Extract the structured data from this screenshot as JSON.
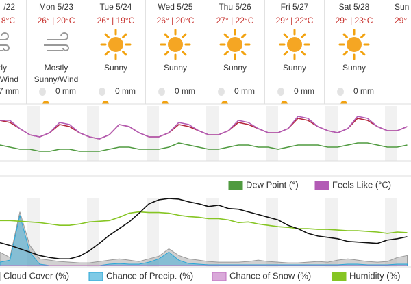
{
  "days": [
    {
      "date": "/22",
      "temps": "8°C",
      "condition": [
        "stly",
        "/Wind"
      ],
      "precip": "7 mm"
    },
    {
      "date": "Mon 5/23",
      "temps": "26° | 20°C",
      "condition": [
        "Mostly",
        "Sunny/Wind"
      ],
      "precip": "0 mm"
    },
    {
      "date": "Tue 5/24",
      "temps": "26° | 19°C",
      "condition": [
        "Sunny"
      ],
      "precip": "0 mm"
    },
    {
      "date": "Wed 5/25",
      "temps": "26° | 20°C",
      "condition": [
        "Sunny"
      ],
      "precip": "0 mm"
    },
    {
      "date": "Thu 5/26",
      "temps": "27° | 22°C",
      "condition": [
        "Sunny"
      ],
      "precip": "0 mm"
    },
    {
      "date": "Fri 5/27",
      "temps": "29° | 22°C",
      "condition": [
        "Sunny"
      ],
      "precip": "0 mm"
    },
    {
      "date": "Sat 5/28",
      "temps": "29° | 23°C",
      "condition": [
        "Sunny"
      ],
      "precip": "0 mm"
    },
    {
      "date": "Sun",
      "temps": "29°",
      "condition": [],
      "precip": ""
    }
  ],
  "chart_data": [
    {
      "type": "line",
      "series": [
        {
          "color": "#b5263a",
          "values": [
            28,
            27,
            24,
            21,
            20,
            22,
            26,
            25,
            22,
            20,
            19,
            21,
            26,
            25,
            22,
            20,
            20,
            22,
            26,
            25,
            23,
            21,
            21,
            23,
            27,
            26,
            24,
            22,
            22,
            24,
            29,
            28,
            25,
            23,
            22,
            24,
            29,
            28,
            25,
            23,
            23,
            25
          ]
        },
        {
          "name": "Feels Like (°C)",
          "color": "#b25bb5",
          "values": [
            28,
            28,
            24,
            21,
            20,
            22,
            27,
            26,
            22,
            20,
            19,
            21,
            26,
            25,
            22,
            20,
            20,
            22,
            27,
            26,
            23,
            21,
            21,
            23,
            28,
            27,
            24,
            22,
            22,
            24,
            30,
            29,
            25,
            23,
            22,
            24,
            30,
            29,
            25,
            23,
            23,
            25
          ]
        },
        {
          "name": "Dew Point (°)",
          "color": "#4f9a3f",
          "values": [
            16,
            15,
            14,
            14,
            13,
            13,
            14,
            14,
            13,
            13,
            13,
            14,
            15,
            15,
            14,
            14,
            14,
            15,
            17,
            16,
            15,
            14,
            14,
            15,
            16,
            16,
            15,
            15,
            14,
            15,
            16,
            16,
            16,
            15,
            15,
            16,
            17,
            17,
            16,
            15,
            15,
            16
          ]
        }
      ]
    },
    {
      "type": "line",
      "series": [
        {
          "name": "Cloud Cover (%)",
          "color": "#9a9a9a",
          "area": true,
          "values": [
            20,
            12,
            80,
            30,
            10,
            8,
            6,
            5,
            4,
            4,
            6,
            8,
            10,
            8,
            6,
            10,
            14,
            25,
            15,
            10,
            8,
            6,
            5,
            5,
            5,
            6,
            8,
            6,
            5,
            4,
            4,
            5,
            6,
            5,
            8,
            10,
            8,
            6,
            5,
            6,
            12,
            15
          ]
        },
        {
          "name": "Chance of Precip. (%)",
          "color": "#2aa6d6",
          "area": true,
          "values": [
            5,
            8,
            75,
            20,
            2,
            0,
            0,
            0,
            0,
            0,
            0,
            2,
            3,
            2,
            2,
            5,
            10,
            20,
            8,
            3,
            2,
            1,
            1,
            1,
            1,
            1,
            1,
            1,
            1,
            1,
            1,
            1,
            1,
            1,
            1,
            2,
            2,
            1,
            1,
            1,
            2,
            2
          ]
        },
        {
          "name": "Chance of Snow (%)",
          "color": "#c070c0",
          "area": true,
          "values": [
            0,
            0,
            0,
            0,
            0,
            0,
            0,
            0,
            0,
            0,
            0,
            0,
            0,
            0,
            0,
            0,
            0,
            0,
            0,
            0,
            0,
            0,
            0,
            0,
            0,
            0,
            0,
            0,
            0,
            0,
            0,
            0,
            0,
            0,
            0,
            0,
            0,
            0,
            0,
            0,
            0,
            0
          ]
        },
        {
          "name": "Humidity (%)",
          "color": "#86c523",
          "values": [
            67,
            67,
            66,
            65,
            64,
            62,
            60,
            60,
            62,
            65,
            66,
            67,
            72,
            78,
            80,
            79,
            79,
            78,
            75,
            73,
            72,
            70,
            70,
            68,
            64,
            65,
            62,
            60,
            58,
            57,
            55,
            55,
            54,
            54,
            53,
            52,
            52,
            51,
            50,
            48,
            50,
            49
          ]
        },
        {
          "color": "#111111",
          "values": [
            34,
            30,
            25,
            20,
            15,
            12,
            10,
            10,
            14,
            22,
            33,
            45,
            55,
            65,
            78,
            92,
            98,
            100,
            99,
            95,
            92,
            88,
            90,
            85,
            84,
            80,
            76,
            72,
            68,
            60,
            55,
            48,
            44,
            42,
            40,
            36,
            35,
            34,
            33,
            38,
            40,
            43
          ]
        }
      ]
    }
  ]
}
